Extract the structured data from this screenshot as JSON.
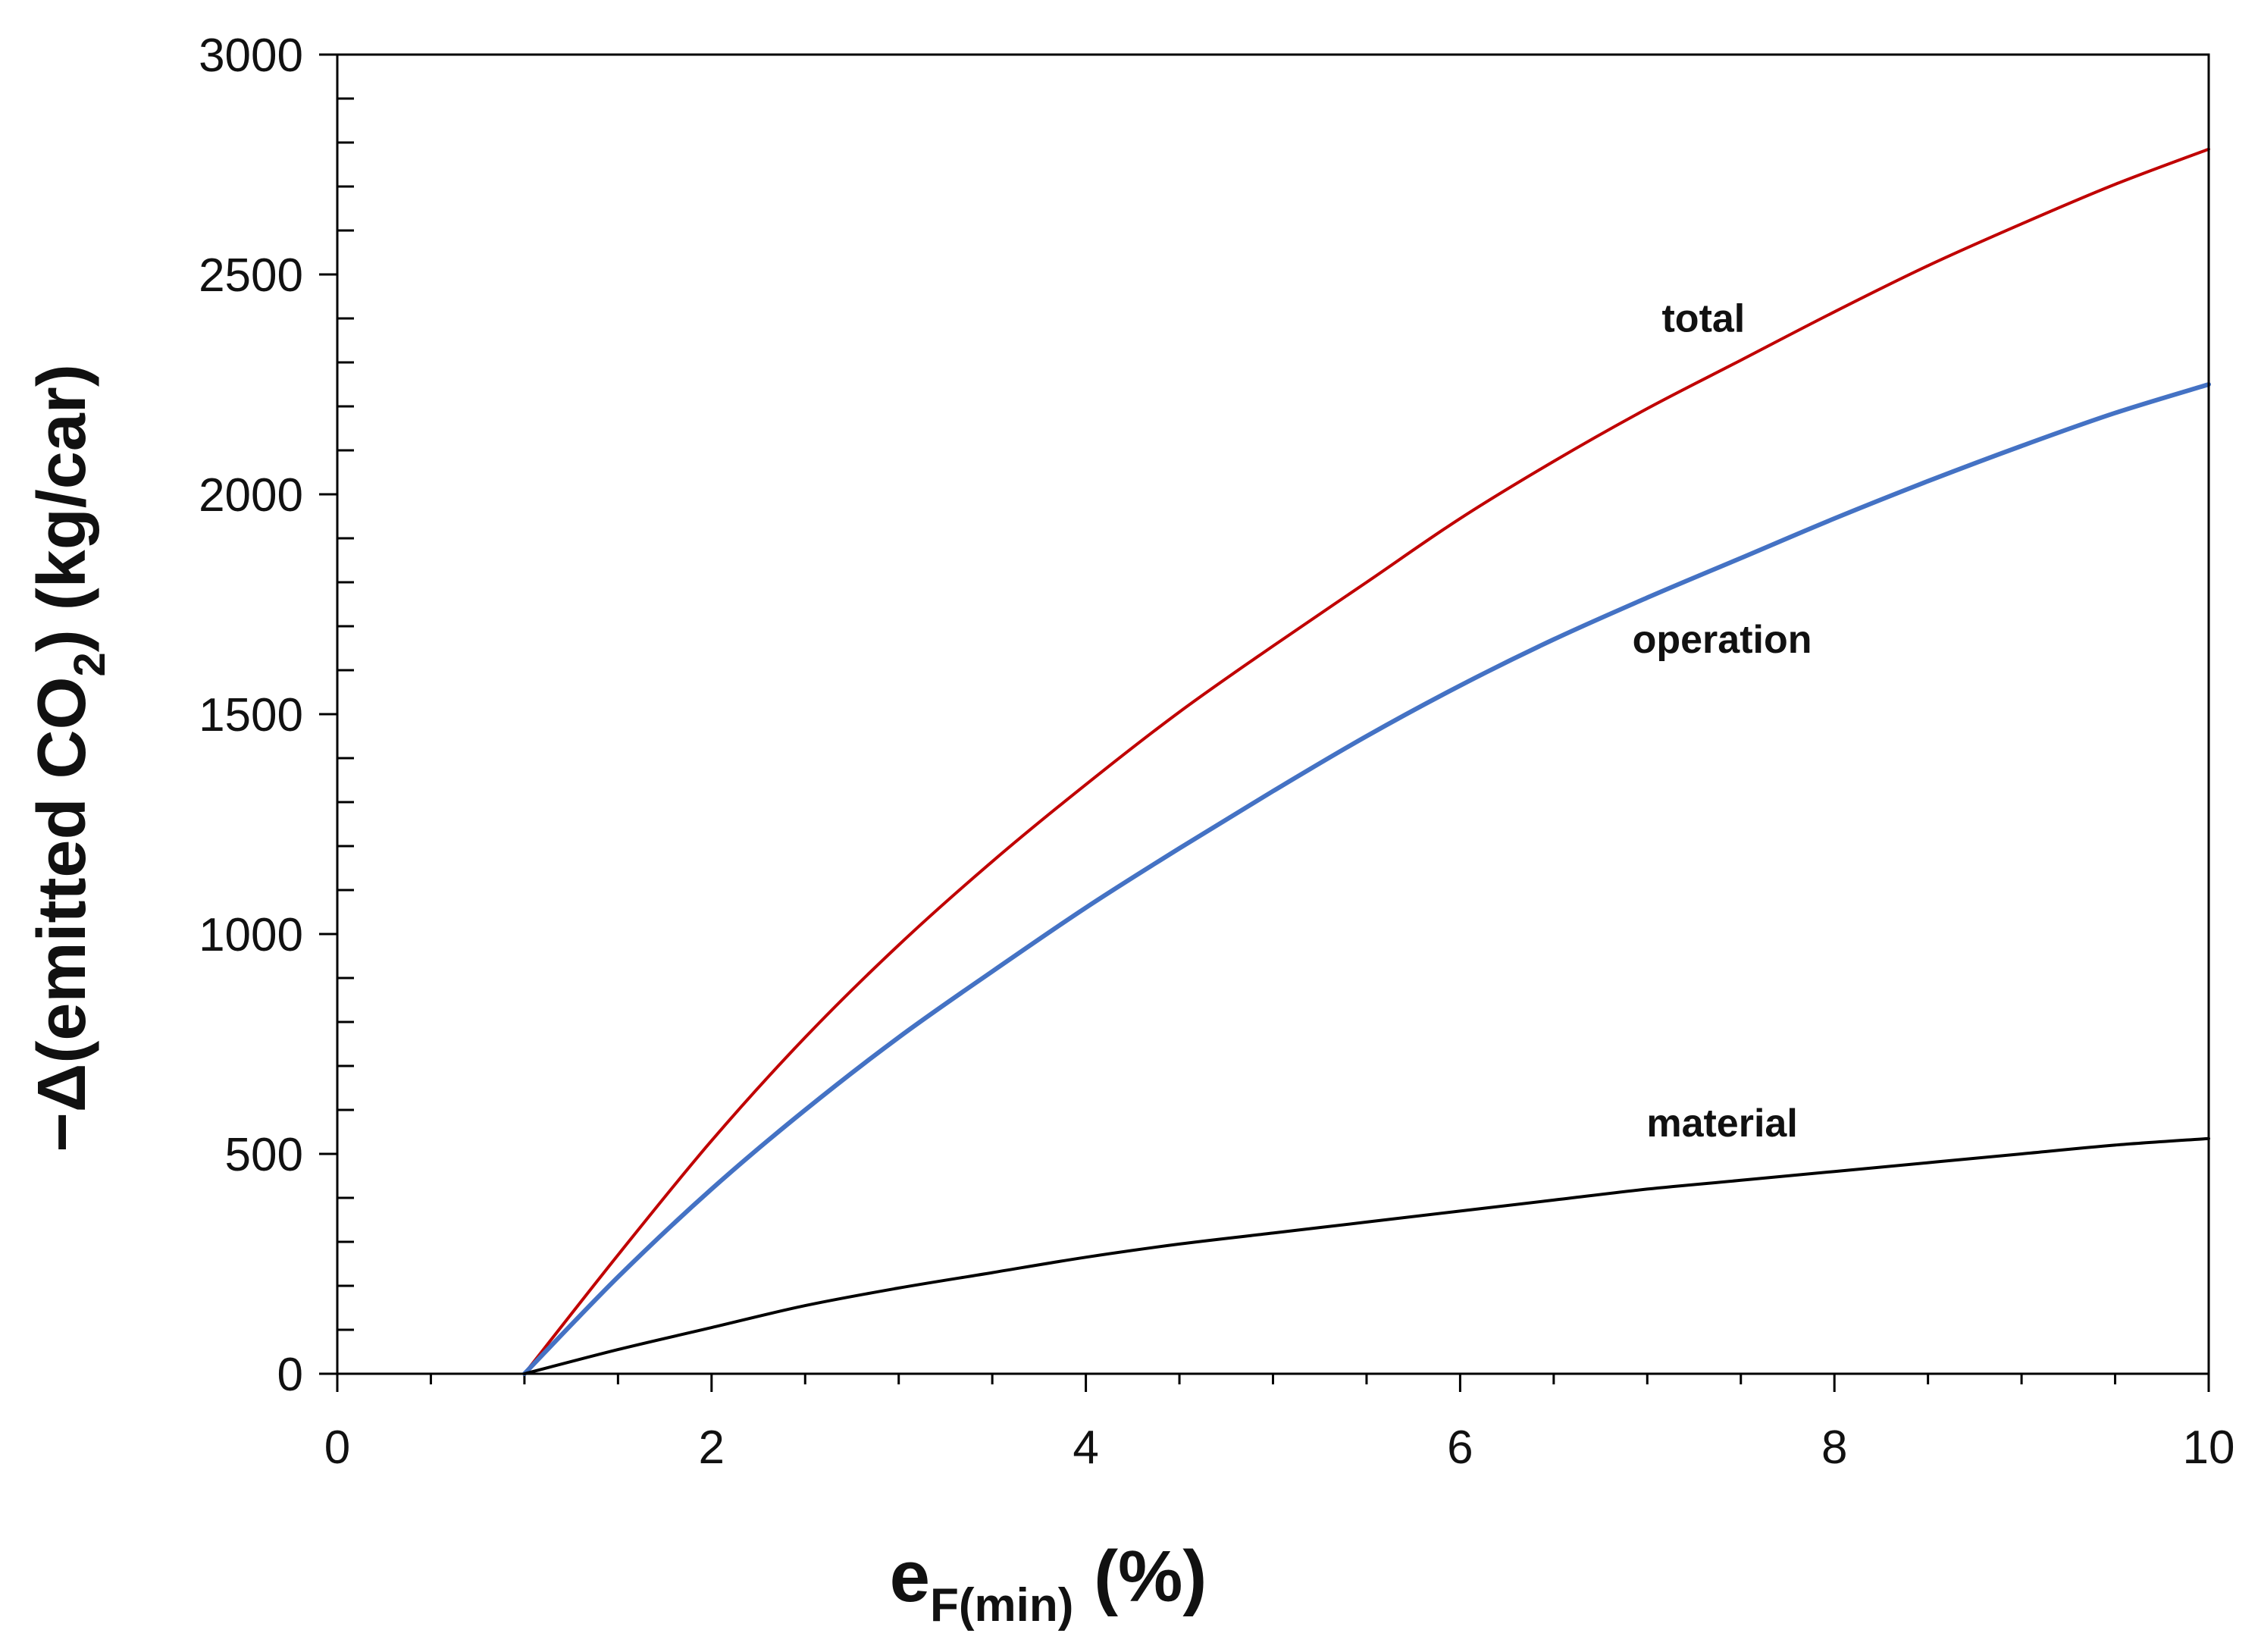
{
  "chart_data": {
    "type": "line",
    "title": "",
    "xlabel": {
      "main": "e",
      "sub": "F(min)",
      "suffix": " (%)"
    },
    "ylabel": {
      "prefix": "−Δ(emitted CO",
      "sub": "2",
      "suffix": ") (kg/car)"
    },
    "xlim": [
      0,
      10
    ],
    "ylim": [
      0,
      3000
    ],
    "x_ticks": [
      0,
      2,
      4,
      6,
      8,
      10
    ],
    "x_tick_labels": [
      "0",
      "2",
      "4",
      "6",
      "8",
      "10"
    ],
    "x_minor_step": 0.5,
    "y_ticks": [
      0,
      500,
      1000,
      1500,
      2000,
      2500,
      3000
    ],
    "y_tick_labels": [
      "0",
      "500",
      "1000",
      "1500",
      "2000",
      "2500",
      "3000"
    ],
    "y_minor_step": 100,
    "grid": false,
    "legend": "none",
    "x": [
      1,
      1.5,
      2,
      2.5,
      3,
      3.5,
      4,
      4.5,
      5,
      5.5,
      6,
      6.5,
      7,
      7.5,
      8,
      8.5,
      9,
      9.5,
      10
    ],
    "series": [
      {
        "name": "total",
        "color": "#c00000",
        "values": [
          0,
          270,
          530,
          765,
          975,
          1165,
          1340,
          1505,
          1655,
          1800,
          1945,
          2075,
          2195,
          2305,
          2415,
          2520,
          2615,
          2705,
          2785
        ],
        "label_at": [
          7.3,
          2370
        ]
      },
      {
        "name": "operation",
        "color": "#4472c4",
        "values": [
          0,
          220,
          420,
          600,
          765,
          915,
          1060,
          1195,
          1325,
          1450,
          1565,
          1670,
          1765,
          1855,
          1945,
          2030,
          2110,
          2185,
          2250
        ],
        "label_at": [
          7.4,
          1640
        ]
      },
      {
        "name": "material",
        "color": "#000000",
        "values": [
          0,
          55,
          105,
          155,
          195,
          230,
          265,
          295,
          320,
          345,
          370,
          395,
          420,
          440,
          460,
          480,
          500,
          520,
          535
        ],
        "label_at": [
          7.4,
          540
        ]
      }
    ]
  }
}
